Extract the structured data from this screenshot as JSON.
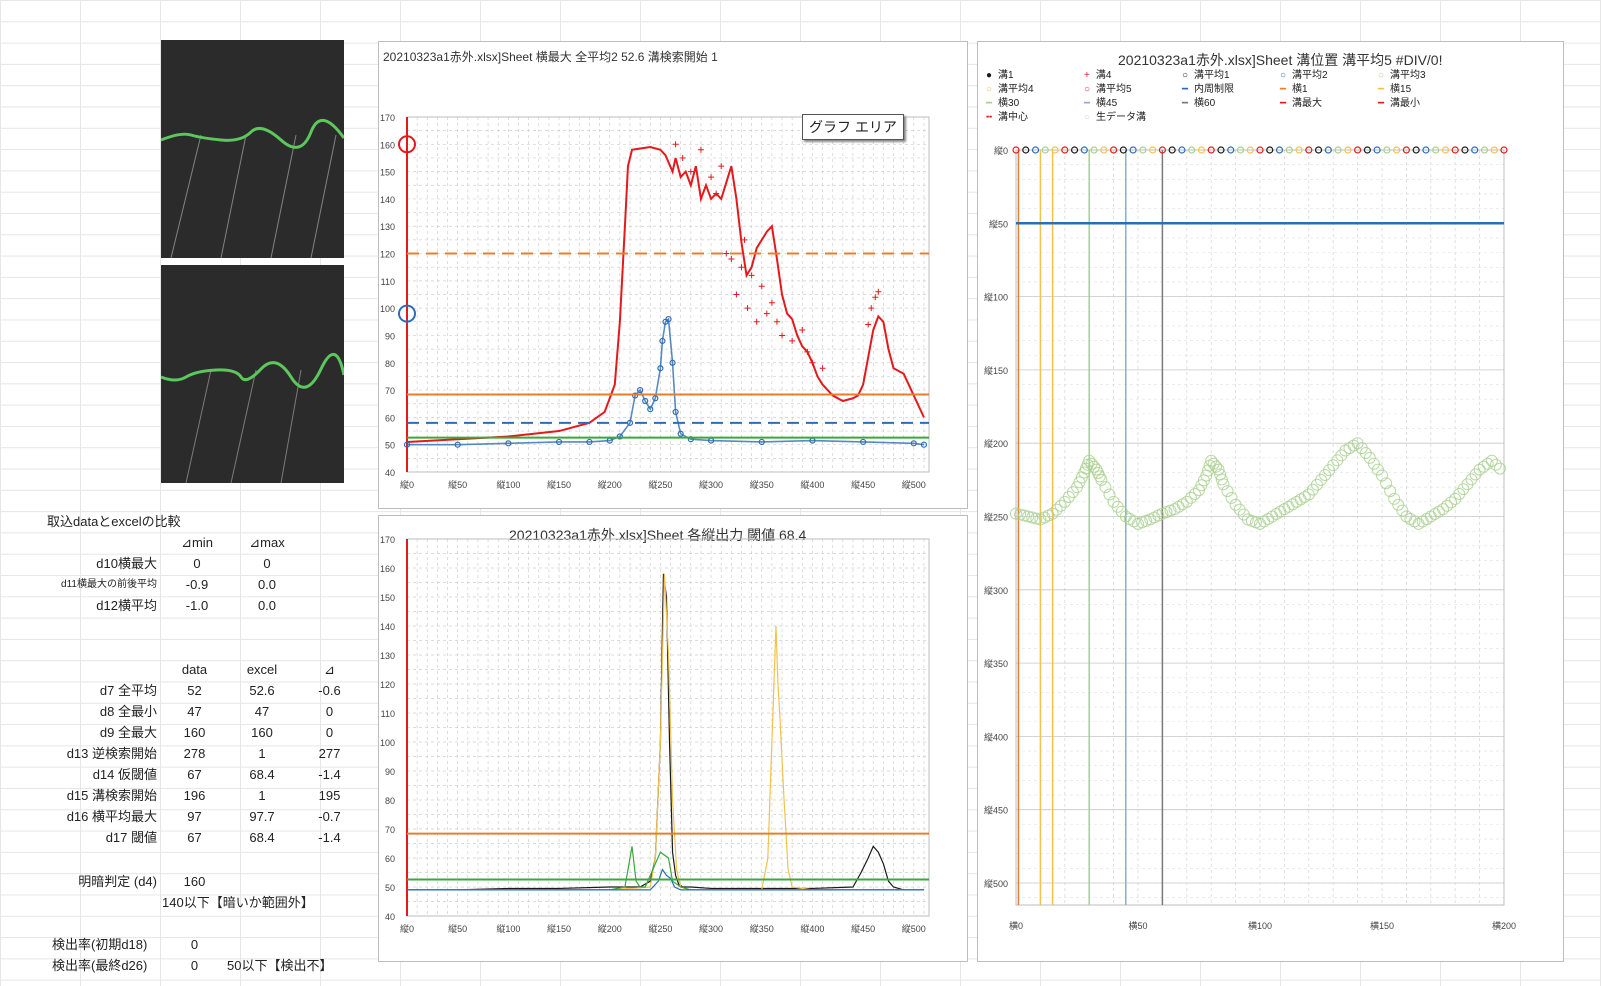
{
  "sheet_label": "取込dataとexcelの比較",
  "diff_table": {
    "headers": [
      "⊿min",
      "⊿max"
    ],
    "rows": [
      {
        "label": "d10横最大",
        "min": "0",
        "max": "0"
      },
      {
        "label": "d11横最大の前後平均",
        "min": "-0.9",
        "max": "0.0"
      },
      {
        "label": "d12横平均",
        "min": "-1.0",
        "max": "0.0"
      }
    ]
  },
  "compare_table": {
    "headers": [
      "data",
      "excel",
      "⊿"
    ],
    "rows": [
      {
        "label": "d7 全平均",
        "data": "52",
        "excel": "52.6",
        "diff": "-0.6"
      },
      {
        "label": "d8 全最小",
        "data": "47",
        "excel": "47",
        "diff": "0"
      },
      {
        "label": "d9 全最大",
        "data": "160",
        "excel": "160",
        "diff": "0"
      },
      {
        "label": "d13 逆検索開始",
        "data": "278",
        "excel": "1",
        "diff": "277"
      },
      {
        "label": "d14 仮閾値",
        "data": "67",
        "excel": "68.4",
        "diff": "-1.4"
      },
      {
        "label": "d15 溝検索開始",
        "data": "196",
        "excel": "1",
        "diff": "195"
      },
      {
        "label": "d16 横平均最大",
        "data": "97",
        "excel": "97.7",
        "diff": "-0.7"
      },
      {
        "label": "d17 閾値",
        "data": "67",
        "excel": "68.4",
        "diff": "-1.4"
      }
    ]
  },
  "judge": {
    "label": "明暗判定 (d4)",
    "value": "160",
    "note": "140以下【暗いか範囲外】"
  },
  "detect": [
    {
      "label": "検出率(初期d18)",
      "value": "0",
      "note": ""
    },
    {
      "label": "検出率(最終d26)",
      "value": "0",
      "note": "50以下【検出不】"
    }
  ],
  "chart_area_label": "グラフ エリア",
  "colors": {
    "red": "#e31a1c",
    "blue": "#2e6db4",
    "orange": "#e97d2c",
    "green": "#3aa83a",
    "yellow": "#f2c24c",
    "lightgreen": "#a8d08d",
    "black": "#1a1a1a"
  },
  "chart_data": [
    {
      "type": "line",
      "title": "20210323a1赤外.xlsx]Sheet 横最大 全平均2 52.6 溝検索開始 1",
      "ylim": [
        40,
        170
      ],
      "xlim": [
        0,
        515
      ],
      "y_ticks": [
        "40",
        "50",
        "60",
        "70",
        "80",
        "90",
        "100",
        "110",
        "120",
        "130",
        "140",
        "150",
        "160",
        "170"
      ],
      "x_ticks": [
        "縦0",
        "縦50",
        "縦100",
        "縦150",
        "縦200",
        "縦250",
        "縦300",
        "縦350",
        "縦400",
        "縦450",
        "縦500"
      ],
      "series": [
        {
          "role": "横最大(line)",
          "color": "#e31a1c",
          "x": [
            0,
            50,
            100,
            150,
            180,
            195,
            205,
            210,
            215,
            218,
            222,
            240,
            250,
            255,
            262,
            265,
            270,
            275,
            280,
            285,
            290,
            295,
            300,
            305,
            310,
            315,
            320,
            325,
            330,
            335,
            340,
            345,
            350,
            355,
            360,
            365,
            370,
            375,
            380,
            385,
            390,
            395,
            400,
            405,
            410,
            415,
            420,
            430,
            440,
            445,
            450,
            455,
            460,
            465,
            470,
            475,
            480,
            490,
            500,
            510
          ],
          "y": [
            51,
            52,
            53,
            55,
            58,
            62,
            72,
            95,
            130,
            152,
            158,
            159,
            158,
            156,
            150,
            155,
            148,
            150,
            145,
            152,
            140,
            145,
            140,
            142,
            140,
            146,
            152,
            140,
            124,
            112,
            115,
            122,
            125,
            128,
            130,
            118,
            105,
            98,
            96,
            90,
            86,
            84,
            80,
            75,
            72,
            70,
            68,
            66,
            67,
            68,
            72,
            82,
            92,
            97,
            95,
            85,
            78,
            76,
            68,
            60
          ]
        },
        {
          "role": "横最大(raw +)",
          "color": "#e31a1c",
          "marker": "+",
          "x": [
            265,
            272,
            280,
            290,
            300,
            305,
            310,
            315,
            320,
            325,
            330,
            333,
            336,
            340,
            345,
            350,
            355,
            360,
            365,
            370,
            380,
            390,
            395,
            400,
            410,
            455,
            458,
            462,
            465
          ],
          "y": [
            160,
            155,
            150,
            158,
            148,
            142,
            152,
            120,
            118,
            105,
            115,
            125,
            100,
            112,
            95,
            108,
            98,
            102,
            95,
            90,
            88,
            92,
            84,
            80,
            78,
            94,
            100,
            104,
            106
          ]
        },
        {
          "role": "横平均",
          "color": "#2e6db4",
          "marker": "o",
          "x": [
            0,
            50,
            100,
            150,
            180,
            200,
            210,
            220,
            225,
            230,
            235,
            240,
            245,
            250,
            252,
            255,
            258,
            262,
            265,
            270,
            280,
            300,
            350,
            400,
            450,
            500,
            510
          ],
          "y": [
            50,
            50,
            50.5,
            51,
            51,
            51.5,
            53,
            58,
            68,
            70,
            66,
            63,
            67,
            78,
            88,
            95,
            96,
            80,
            62,
            54,
            52,
            51.5,
            51,
            51.5,
            51,
            50.5,
            50
          ]
        },
        {
          "role": "閾値 68.4",
          "color": "#e97d2c",
          "value": 68.4
        },
        {
          "role": "120 dashed",
          "color": "#e97d2c",
          "value": 120,
          "dashed": true
        },
        {
          "role": "58 dashed",
          "color": "#2e6db4",
          "value": 58,
          "dashed": true
        },
        {
          "role": "52.6",
          "color": "#3aa83a",
          "value": 52.6
        }
      ],
      "markers": [
        {
          "y": 160
        },
        {
          "y": 98
        }
      ]
    },
    {
      "type": "line",
      "title": "20210323a1赤外.xlsx]Sheet 各縦出力 閾値 68.4",
      "ylim": [
        40,
        170
      ],
      "xlim": [
        0,
        515
      ],
      "y_ticks": [
        "40",
        "50",
        "60",
        "70",
        "80",
        "90",
        "100",
        "110",
        "120",
        "130",
        "140",
        "150",
        "160",
        "170"
      ],
      "x_ticks": [
        "縦0",
        "縦50",
        "縦100",
        "縦150",
        "縦200",
        "縦250",
        "縦300",
        "縦350",
        "縦400",
        "縦450",
        "縦500"
      ],
      "series": [
        {
          "role": "black",
          "color": "#1a1a1a",
          "x": [
            0,
            50,
            100,
            150,
            200,
            230,
            240,
            245,
            250,
            253,
            256,
            259,
            262,
            265,
            268,
            272,
            280,
            300,
            350,
            400,
            440,
            448,
            455,
            460,
            465,
            470,
            475,
            480,
            490,
            510
          ],
          "y": [
            49,
            49,
            49.5,
            49.5,
            50,
            50,
            52,
            60,
            100,
            158,
            150,
            100,
            62,
            54,
            51,
            50,
            50,
            49.5,
            49.5,
            49.5,
            50,
            55,
            60,
            64,
            62,
            58,
            52,
            50,
            49,
            49
          ]
        },
        {
          "role": "yellow",
          "color": "#f2c24c",
          "x": [
            0,
            200,
            240,
            245,
            250,
            254,
            258,
            262,
            266,
            270,
            280,
            350,
            356,
            360,
            364,
            366,
            368,
            372,
            376,
            380,
            400,
            510
          ],
          "y": [
            49,
            49,
            50,
            60,
            100,
            158,
            130,
            80,
            56,
            50,
            49,
            49,
            60,
            100,
            140,
            120,
            108,
            80,
            56,
            50,
            49,
            49
          ]
        },
        {
          "role": "green",
          "color": "#3aa83a",
          "x": [
            0,
            200,
            215,
            218,
            222,
            226,
            230,
            235,
            245,
            250,
            258,
            262,
            270,
            280,
            510
          ],
          "y": [
            49,
            49,
            50,
            56,
            64,
            52,
            50,
            50,
            58,
            62,
            60,
            52,
            50,
            49,
            49
          ]
        },
        {
          "role": "blue",
          "color": "#2e6db4",
          "x": [
            0,
            240,
            248,
            252,
            256,
            260,
            264,
            270,
            280,
            510
          ],
          "y": [
            49,
            49,
            52,
            56,
            54,
            53,
            50,
            49,
            49,
            49
          ]
        },
        {
          "role": "閾値 68.4",
          "color": "#e97d2c",
          "value": 68.4
        },
        {
          "role": "52.6",
          "color": "#3aa83a",
          "value": 52.6
        }
      ]
    },
    {
      "type": "scatter",
      "title": "20210323a1赤外.xlsx]Sheet 溝位置 溝平均5 #DIV/0!",
      "legend": [
        "溝1",
        "溝4",
        "溝平均1",
        "溝平均2",
        "溝平均3",
        "溝平均4",
        "溝平均5",
        "内周制限",
        "横1",
        "横15",
        "横30",
        "横45",
        "横60",
        "溝最大",
        "溝最小",
        "溝中心",
        "生データ溝"
      ],
      "x_ticks": [
        "横0",
        "横50",
        "横100",
        "横150",
        "横200"
      ],
      "y_ticks": [
        "縦0",
        "縦50",
        "縦100",
        "縦150",
        "縦200",
        "縦250",
        "縦300",
        "縦350",
        "縦400",
        "縦450",
        "縦500"
      ],
      "xlim": [
        0,
        200
      ],
      "ylim": [
        0,
        515
      ],
      "inner_limit": 50,
      "vlines": [
        {
          "x": 1,
          "color": "#e97d2c"
        },
        {
          "x": 10,
          "color": "#f2c24c"
        },
        {
          "x": 15,
          "color": "#f2c24c"
        },
        {
          "x": 30,
          "color": "#a8d08d"
        },
        {
          "x": 45,
          "color": "#8fa9d6"
        },
        {
          "x": 60,
          "color": "#7a7a7a"
        }
      ],
      "top_points_y": 0,
      "raw_x": [
        0,
        5,
        10,
        15,
        20,
        25,
        28,
        30,
        33,
        35,
        40,
        45,
        50,
        55,
        60,
        65,
        70,
        75,
        78,
        80,
        83,
        85,
        90,
        95,
        100,
        105,
        110,
        115,
        120,
        125,
        130,
        135,
        140,
        145,
        150,
        155,
        160,
        165,
        170,
        175,
        180,
        185,
        190,
        195,
        200
      ],
      "raw_y": [
        248,
        250,
        252,
        248,
        240,
        230,
        220,
        212,
        218,
        225,
        240,
        250,
        255,
        252,
        248,
        245,
        240,
        232,
        222,
        212,
        218,
        228,
        242,
        252,
        255,
        250,
        245,
        240,
        235,
        225,
        215,
        205,
        200,
        210,
        222,
        238,
        250,
        255,
        250,
        245,
        238,
        228,
        218,
        212,
        220
      ]
    }
  ]
}
